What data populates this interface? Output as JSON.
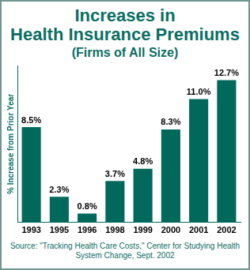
{
  "chart_data": {
    "type": "bar",
    "title": [
      "Increases in",
      "Health Insurance Premiums"
    ],
    "subtitle": "(Firms of All Size)",
    "y_label": "% Increase from Prior Year",
    "source": "Source: \"Tracking Health Care Costs,\" Center for Studying Health System Change, Sept. 2002",
    "categories": [
      "1993",
      "1995",
      "1996",
      "1998",
      "1999",
      "2000",
      "2001",
      "2002"
    ],
    "values": [
      8.5,
      2.3,
      0.8,
      3.7,
      4.8,
      8.3,
      11.0,
      12.7
    ],
    "value_labels": [
      "8.5%",
      "2.3%",
      "0.8%",
      "3.7%",
      "4.8%",
      "8.3%",
      "11.0%",
      "12.7%"
    ],
    "color": "#00695c",
    "ylim": [
      0,
      14
    ],
    "grid": false,
    "data_labels": true,
    "tick_labels": "x"
  }
}
